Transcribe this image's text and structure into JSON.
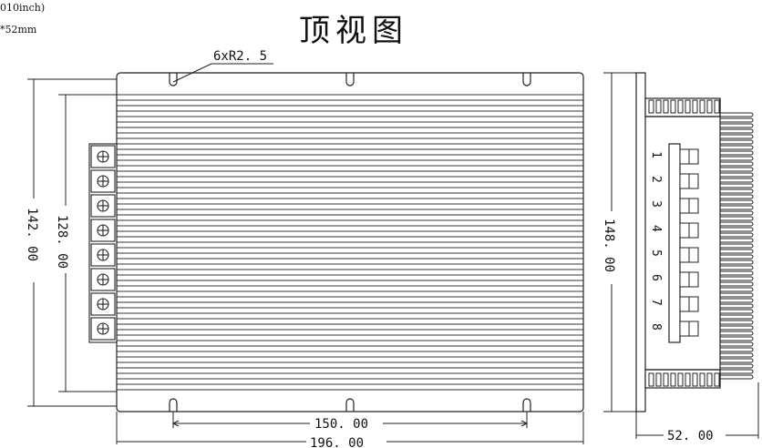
{
  "notes": {
    "line1": "010inch)",
    "line2": "*52mm"
  },
  "title": "顶视图",
  "labels": {
    "radius": "6xR2. 5",
    "dim_142": "142. 00",
    "dim_128": "128. 00",
    "dim_148": "148. 00",
    "dim_150": "150. 00",
    "dim_196": "196. 00",
    "dim_52": "52. 00"
  },
  "pins": [
    "1",
    "2",
    "3",
    "4",
    "5",
    "6",
    "7",
    "8"
  ]
}
